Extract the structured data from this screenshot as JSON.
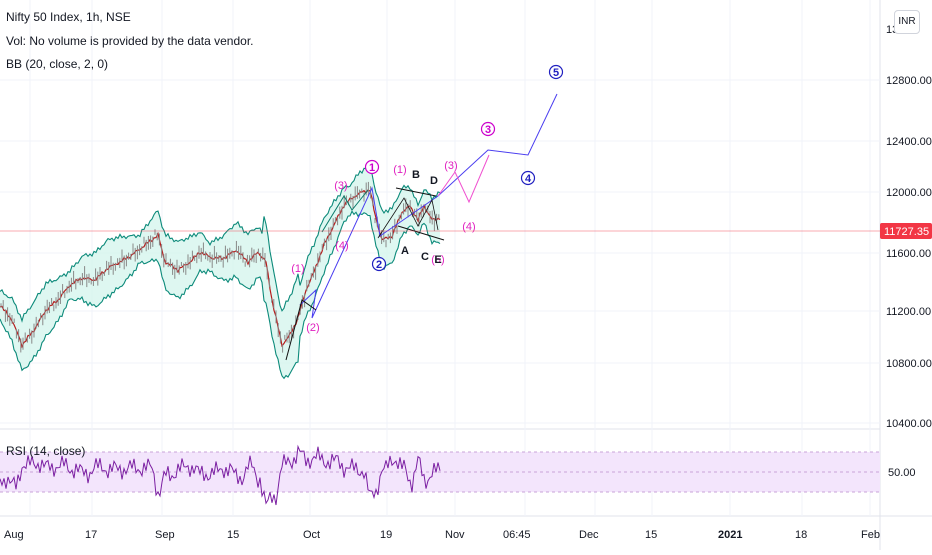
{
  "legend": {
    "title": "Nifty 50 Index, 1h, NSE",
    "volume": "Vol: No volume is provided by the data vendor.",
    "bb": "BB (20, close, 2, 0)",
    "rsi": "RSI (14, close)"
  },
  "currency": "INR",
  "price_axis": {
    "top_partial": "13",
    "labels": [
      "12800.00",
      "12400.00",
      "12000.00",
      "11600.00",
      "11200.00",
      "10800.00",
      "10400.00"
    ],
    "last_price": "11727.35"
  },
  "rsi_axis": {
    "label": "50.00"
  },
  "time_axis": {
    "labels": [
      "Aug",
      "17",
      "Sep",
      "15",
      "Oct",
      "19",
      "Nov",
      "06:45",
      "Dec",
      "15",
      "2021",
      "18",
      "Feb"
    ]
  },
  "wave_labels": [
    {
      "text": "1",
      "color": "#cc00cc",
      "circled": true
    },
    {
      "text": "2",
      "color": "#2020c0",
      "circled": true
    },
    {
      "text": "3",
      "color": "#cc00cc",
      "circled": true
    },
    {
      "text": "4",
      "color": "#2020c0",
      "circled": true
    },
    {
      "text": "5",
      "color": "#2020c0",
      "circled": true
    },
    {
      "text": "(1)",
      "color": "#e020c0"
    },
    {
      "text": "(2)",
      "color": "#e020c0"
    },
    {
      "text": "(3)",
      "color": "#e020c0"
    },
    {
      "text": "(4)",
      "color": "#e020c0"
    },
    {
      "text": "(1)",
      "color": "#e020c0"
    },
    {
      "text": "(3)",
      "color": "#e020c0"
    },
    {
      "text": "(4)",
      "color": "#e020c0"
    },
    {
      "text": "(5)",
      "color": "#e020c0"
    },
    {
      "text": "A",
      "color": "#131722"
    },
    {
      "text": "B",
      "color": "#131722"
    },
    {
      "text": "C",
      "color": "#131722"
    },
    {
      "text": "D",
      "color": "#131722"
    },
    {
      "text": "E",
      "color": "#131722"
    }
  ],
  "colors": {
    "band": "#0c8a7a",
    "band_fill": "#d6f5ee",
    "basis": "#b71c1c",
    "candles": "#888888",
    "rsi_line": "#7b1fa2",
    "rsi_fill": "#f3e5fc",
    "last_price": "#f23645",
    "projection": "#4a3df0",
    "projection_pink": "#f050d0"
  }
}
